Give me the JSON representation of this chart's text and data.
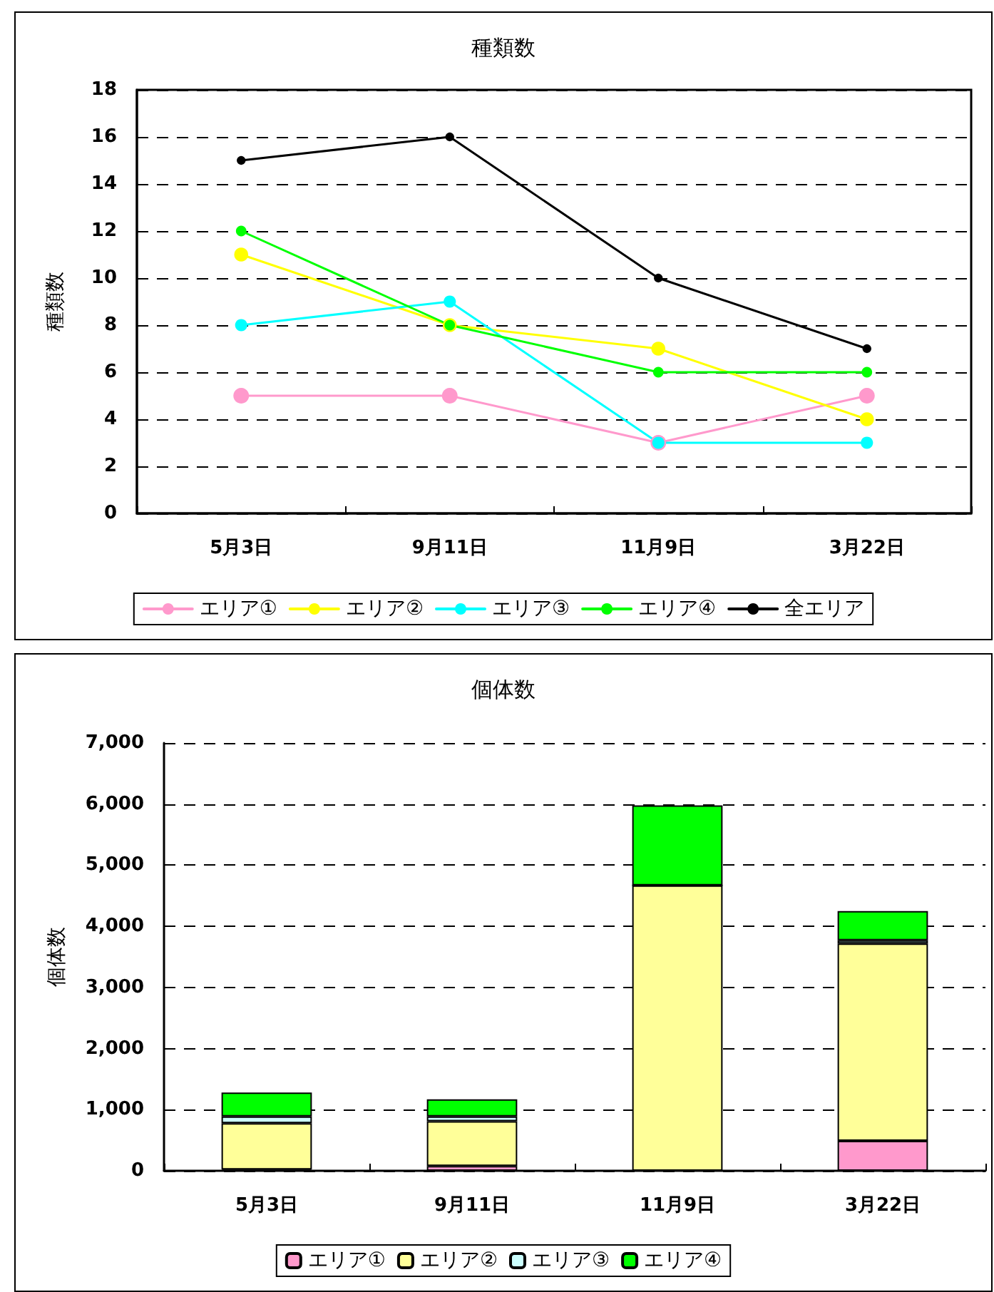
{
  "chart_data": [
    {
      "type": "line",
      "title": "種類数",
      "ylabel": "種類数",
      "categories": [
        "5月3日",
        "9月11日",
        "11月9日",
        "3月22日"
      ],
      "series": [
        {
          "name": "エリア①",
          "color": "#ff99cc",
          "values": [
            5,
            5,
            3,
            5
          ]
        },
        {
          "name": "エリア②",
          "color": "#ffff00",
          "values": [
            11,
            8,
            7,
            4
          ]
        },
        {
          "name": "エリア③",
          "color": "#00ffff",
          "values": [
            8,
            9,
            3,
            3
          ]
        },
        {
          "name": "エリア④",
          "color": "#00ff00",
          "values": [
            12,
            8,
            6,
            6
          ]
        },
        {
          "name": "全エリア",
          "color": "#000000",
          "values": [
            15,
            16,
            10,
            7
          ]
        }
      ],
      "ylim": [
        0,
        18
      ],
      "yticks": [
        0,
        2,
        4,
        6,
        8,
        10,
        12,
        14,
        16,
        18
      ],
      "grid": "y",
      "legend": "bottom",
      "marker": "circle",
      "line_style": "solid"
    },
    {
      "type": "bar",
      "stacked": true,
      "title": "個体数",
      "ylabel": "個体数",
      "categories": [
        "5月3日",
        "9月11日",
        "11月9日",
        "3月22日"
      ],
      "series": [
        {
          "name": "エリア①",
          "color": "#ff99cc",
          "values": [
            20,
            80,
            0,
            490
          ]
        },
        {
          "name": "エリア②",
          "color": "#ffff99",
          "values": [
            760,
            730,
            4670,
            3230
          ]
        },
        {
          "name": "エリア③",
          "color": "#ccffff",
          "values": [
            110,
            80,
            0,
            50
          ]
        },
        {
          "name": "エリア④",
          "color": "#00ff00",
          "values": [
            390,
            280,
            1310,
            480
          ]
        }
      ],
      "ylim": [
        0,
        7000
      ],
      "yticks": [
        {
          "value": 0,
          "label": "0"
        },
        {
          "value": 1000,
          "label": "1,000"
        },
        {
          "value": 2000,
          "label": "2,000"
        },
        {
          "value": 3000,
          "label": "3,000"
        },
        {
          "value": 4000,
          "label": "4,000"
        },
        {
          "value": 5000,
          "label": "5,000"
        },
        {
          "value": 6000,
          "label": "6,000"
        },
        {
          "value": 7000,
          "label": "7,000"
        }
      ],
      "grid": "y",
      "legend": "bottom"
    }
  ]
}
